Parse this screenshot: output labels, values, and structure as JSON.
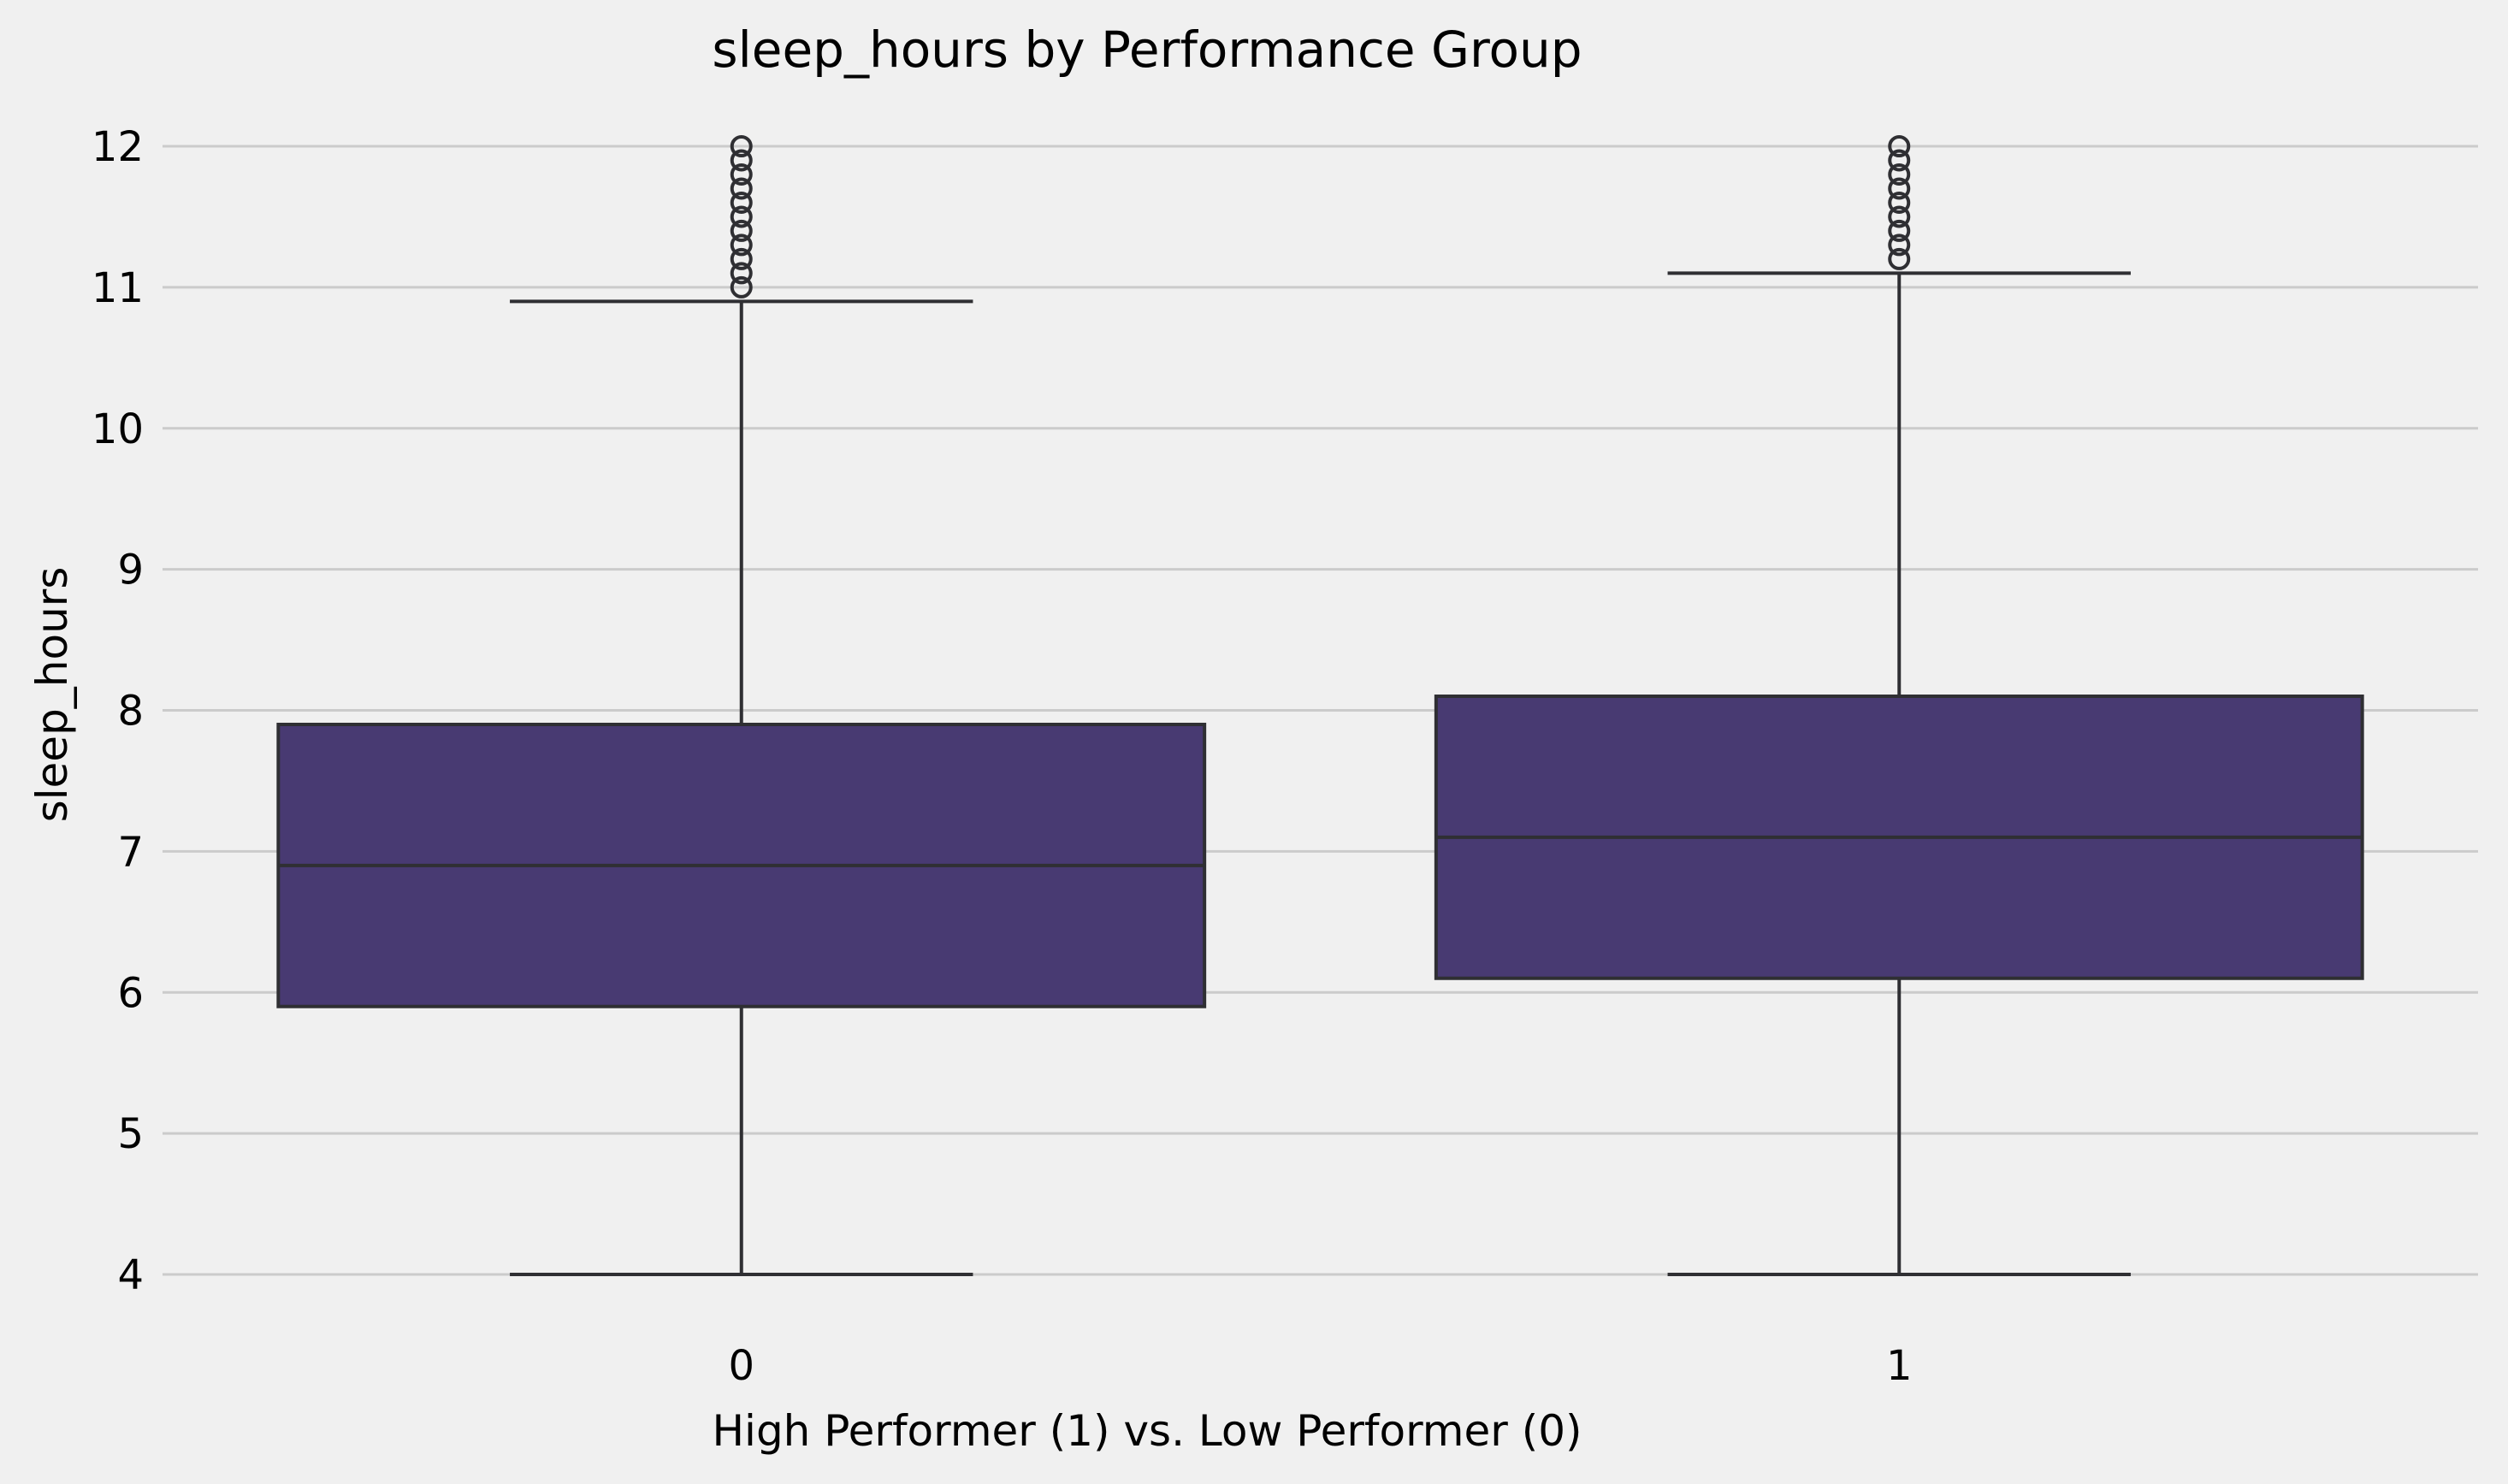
{
  "chart_data": {
    "type": "box",
    "title": "sleep_hours by Performance Group",
    "xlabel": "High Performer (1) vs. Low Performer (0)",
    "ylabel": "sleep_hours",
    "ylim": [
      4,
      12
    ],
    "yticks": [
      4,
      5,
      6,
      7,
      8,
      9,
      10,
      11,
      12
    ],
    "grid": true,
    "box_color": "#483a72",
    "line_color": "#2f2f33",
    "background": "#f0f0f0",
    "categories": [
      "0",
      "1"
    ],
    "boxes": [
      {
        "category": "0",
        "whisker_low": 4.0,
        "q1": 5.9,
        "median": 6.9,
        "q3": 7.9,
        "whisker_high": 10.9,
        "outliers": [
          11.0,
          11.1,
          11.2,
          11.3,
          11.4,
          11.5,
          11.6,
          11.7,
          11.8,
          11.9,
          12.0
        ]
      },
      {
        "category": "1",
        "whisker_low": 4.0,
        "q1": 6.1,
        "median": 7.1,
        "q3": 8.1,
        "whisker_high": 11.1,
        "outliers": [
          11.2,
          11.3,
          11.4,
          11.5,
          11.6,
          11.7,
          11.8,
          11.9,
          12.0
        ]
      }
    ]
  }
}
